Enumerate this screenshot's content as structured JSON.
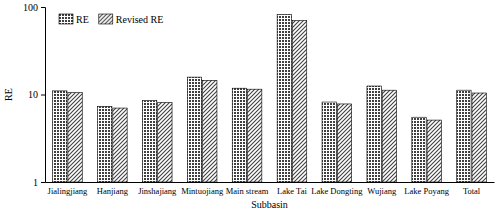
{
  "chart_data": {
    "type": "bar",
    "x_label": "Subbasin",
    "y_label": "RE",
    "categories": [
      "Jialingjiang",
      "Hanjiang",
      "Jinshajiang",
      "Mintuojiang",
      "Main stream",
      "Lake Tai",
      "Lake Dongting",
      "Wujiang",
      "Lake Poyang",
      "Total"
    ],
    "series": [
      {
        "name": "RE",
        "color": "#404040",
        "values": [
          11,
          7.3,
          8.5,
          15.8,
          11.8,
          82,
          8.2,
          12.5,
          5.5,
          11.2
        ]
      },
      {
        "name": "Revised RE",
        "color": "#404040",
        "values": [
          10.5,
          7.0,
          8.1,
          14.5,
          11.5,
          70,
          7.8,
          11.2,
          5.1,
          10.4
        ]
      }
    ],
    "log": "y",
    "ylim": [
      1,
      100
    ],
    "yticks": [
      1,
      10,
      100
    ],
    "grid": false,
    "legend": "upper left"
  }
}
